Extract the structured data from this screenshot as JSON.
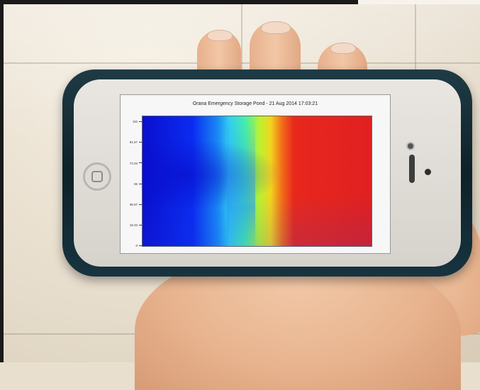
{
  "chart": {
    "title": "Orana Emergency Storage Pond - 21 Aug 2014 17:03:21",
    "y_ticks": [
      "110",
      "91.67",
      "73.33",
      "55",
      "36.67",
      "18.33",
      "0"
    ]
  },
  "chart_data": {
    "type": "heatmap",
    "title": "Orana Emergency Storage Pond - 21 Aug 2014 17:03:21",
    "y_ticks": [
      110,
      91.67,
      73.33,
      55,
      36.67,
      18.33,
      0
    ],
    "colormap": [
      "#0a0fcf",
      "#1a8af5",
      "#46f2a6",
      "#f2d41f",
      "#e02020"
    ],
    "grid": false
  },
  "colors": {
    "case": "#1e3b45",
    "phone_body": "#e9e6e1",
    "screen_bg": "#f7f7f7",
    "skin": "#f2c9a8"
  }
}
